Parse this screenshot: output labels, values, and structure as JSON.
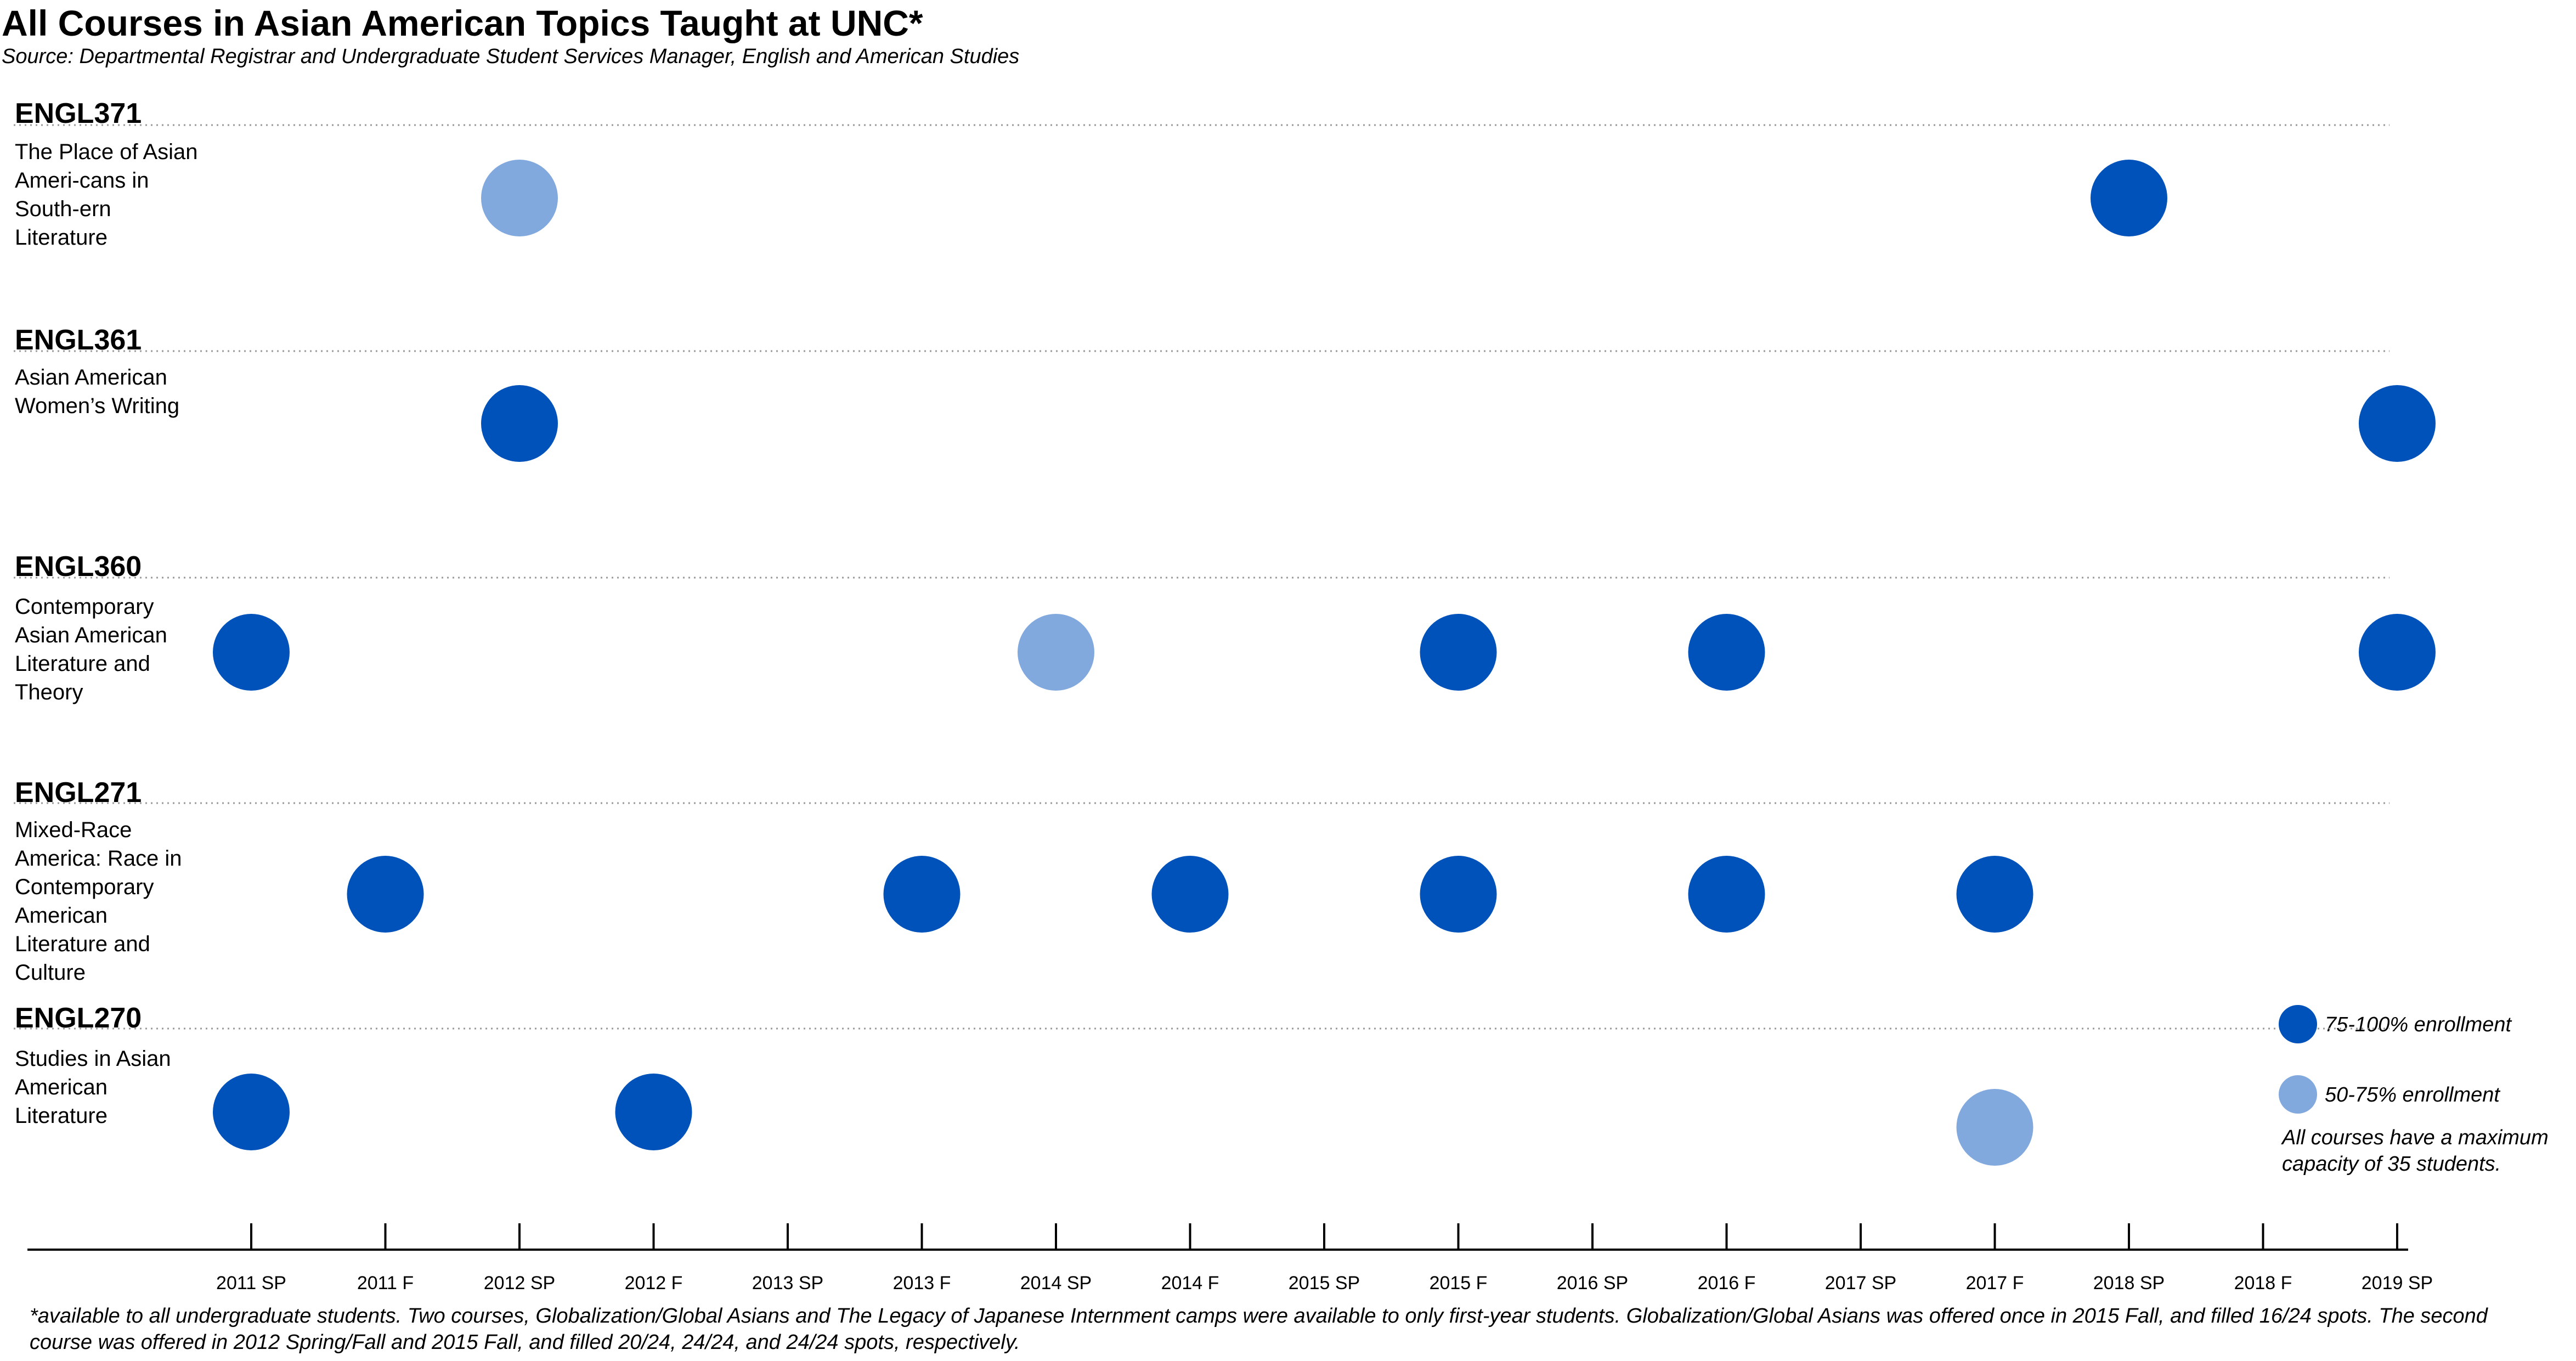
{
  "chart_data": {
    "type": "scatter",
    "title": "All Courses in Asian American Topics Taught at UNC*",
    "subtitle": "Source: Departmental Registrar and Undergraduate Student Services Manager, English and American Studies",
    "x_categories": [
      "2011 SP",
      "2011 F",
      "2012 SP",
      "2012 F",
      "2013 SP",
      "2013 F",
      "2014 SP",
      "2014 F",
      "2015 SP",
      "2015 F",
      "2016 SP",
      "2016 F",
      "2017 SP",
      "2017 F",
      "2018 SP",
      "2018 F",
      "2019 SP"
    ],
    "courses": [
      {
        "code": "ENGL371",
        "name": "The Place of Asian Ameri-cans in South-ern Literature",
        "offerings": [
          {
            "term": "2012 SP",
            "enrollment": "50-75% enrollment"
          },
          {
            "term": "2018 SP",
            "enrollment": "75-100% enrollment"
          }
        ]
      },
      {
        "code": "ENGL361",
        "name": "Asian American Women’s Writing",
        "offerings": [
          {
            "term": "2012 SP",
            "enrollment": "75-100% enrollment"
          },
          {
            "term": "2019 SP",
            "enrollment": "75-100% enrollment"
          }
        ]
      },
      {
        "code": "ENGL360",
        "name": "Contemporary Asian American Literature and Theory",
        "offerings": [
          {
            "term": "2011 SP",
            "enrollment": "75-100% enrollment"
          },
          {
            "term": "2014 SP",
            "enrollment": "50-75% enrollment"
          },
          {
            "term": "2015 F",
            "enrollment": "75-100% enrollment"
          },
          {
            "term": "2016 F",
            "enrollment": "75-100% enrollment"
          },
          {
            "term": "2019 SP",
            "enrollment": "75-100% enrollment"
          }
        ]
      },
      {
        "code": "ENGL271",
        "name": "Mixed-Race America: Race in Contemporary American Literature and Culture",
        "offerings": [
          {
            "term": "2011 F",
            "enrollment": "75-100% enrollment"
          },
          {
            "term": "2013 F",
            "enrollment": "75-100% enrollment"
          },
          {
            "term": "2014 F",
            "enrollment": "75-100% enrollment"
          },
          {
            "term": "2015 F",
            "enrollment": "75-100% enrollment"
          },
          {
            "term": "2016 F",
            "enrollment": "75-100% enrollment"
          },
          {
            "term": "2017 F",
            "enrollment": "75-100% enrollment"
          }
        ]
      },
      {
        "code": "ENGL270",
        "name": "Studies in Asian American Literature",
        "offerings": [
          {
            "term": "2011 SP",
            "enrollment": "75-100% enrollment"
          },
          {
            "term": "2012 F",
            "enrollment": "75-100% enrollment"
          },
          {
            "term": "2017 F",
            "enrollment": "50-75% enrollment"
          }
        ]
      }
    ],
    "legend": [
      {
        "label": "75-100% enrollment",
        "color": "#0052BB"
      },
      {
        "label": "50-75% enrollment",
        "color": "#82A9DD"
      }
    ],
    "legend_placement": "bottom-right",
    "legend_note": "All courses have a maximum capacity of 35 students.",
    "footnote": "*available to all undergraduate students. Two courses, Globalization/Global Asians and The Legacy of Japanese Internment camps were available to only first-year students. Globalization/Global Asians was offered once in 2015 Fall, and filled 16/24 spots. The second course was offered in 2012 Spring/Fall and 2015 Fall, and filled 20/24, 24/24, and 24/24 spots, respectively.",
    "grid": false
  }
}
